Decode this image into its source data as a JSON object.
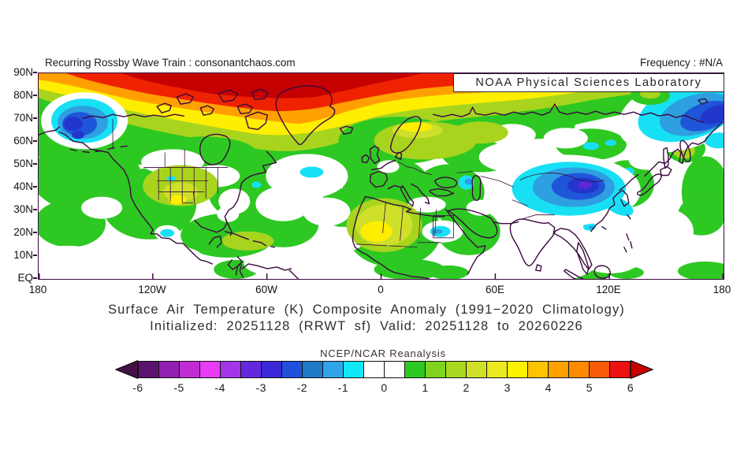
{
  "header": {
    "left": "Recurring Rossby Wave Train : consonantchaos.com",
    "right": "Frequency : #N/A"
  },
  "noaa_box": {
    "label": "NOAA Physical Sciences Laboratory"
  },
  "map": {
    "lat_labels": [
      "90N",
      "80N",
      "70N",
      "60N",
      "50N",
      "40N",
      "30N",
      "20N",
      "10N",
      "EQ"
    ],
    "lon_labels": [
      "180",
      "120W",
      "60W",
      "0",
      "60E",
      "120E",
      "180"
    ],
    "coastline_color": "#3a0a3e",
    "background": "#ffffff"
  },
  "caption": {
    "line1": "Surface Air Temperature (K) Composite Anomaly (1991−2020 Climatology)",
    "line2": "Initialized: 20251128 (RRWT sf) Valid: 20251128 to 20260226"
  },
  "colorbar": {
    "title": "NCEP/NCAR Reanalysis",
    "tick_labels": [
      "-6",
      "-5",
      "-4",
      "-3",
      "-2",
      "-1",
      "0",
      "1",
      "2",
      "3",
      "4",
      "5",
      "6"
    ],
    "cell_colors": [
      "#5c1370",
      "#9121b0",
      "#c02cd4",
      "#e83cf4",
      "#a435e8",
      "#6428dc",
      "#3c28d8",
      "#2050dc",
      "#2078c8",
      "#30a4e8",
      "#10e8f8",
      "#ffffff",
      "#ffffff",
      "#2ec822",
      "#80d41f",
      "#aad820",
      "#d0e028",
      "#ece820",
      "#fff200",
      "#ffc400",
      "#ffa200",
      "#ff8a00",
      "#f85c08",
      "#ee1111"
    ],
    "left_arrow_color": "#451043",
    "right_arrow_color": "#c80000"
  },
  "chart_data": {
    "type": "filled-contour-map",
    "title": "Surface Air Temperature (K) Composite Anomaly (1991−2020 Climatology)",
    "subtitle": "Initialized: 20251128 (RRWT sf) Valid: 20251128 to 20260226",
    "source": "NCEP/NCAR Reanalysis",
    "lat_range": [
      "EQ",
      "90N"
    ],
    "lon_range": [
      "180",
      "180"
    ],
    "scale": {
      "units": "K",
      "min": -6,
      "max": 6,
      "step": 0.5,
      "zero_color": "white"
    },
    "notable_features": [
      {
        "region": "Arctic cap 75N-90N across Canada, Greenland, Arctic Ocean",
        "anomaly_K": "+5 to +6"
      },
      {
        "region": "Subarctic band 60N-75N most longitudes",
        "anomaly_K": "+2 to +4"
      },
      {
        "region": "Bering Sea near 180W, 60-75N",
        "anomaly_K": "-1 to -3"
      },
      {
        "region": "Northeast Siberia 150E-180E, 55-80N",
        "anomaly_K": "-1 to -4"
      },
      {
        "region": "Tibet / Mongolia plateau 75E-110E, 30-45N",
        "anomaly_K": "-1 to -4"
      },
      {
        "region": "Sahara, eastern Europe, central US plains",
        "anomaly_K": "+1 to +3"
      },
      {
        "region": "Mid-latitude oceans",
        "anomaly_K": "0 to +1"
      },
      {
        "region": "Small cold spots: Sudan, Baja, Caspian, south China",
        "anomaly_K": "-0.5 to -1.5"
      }
    ]
  }
}
